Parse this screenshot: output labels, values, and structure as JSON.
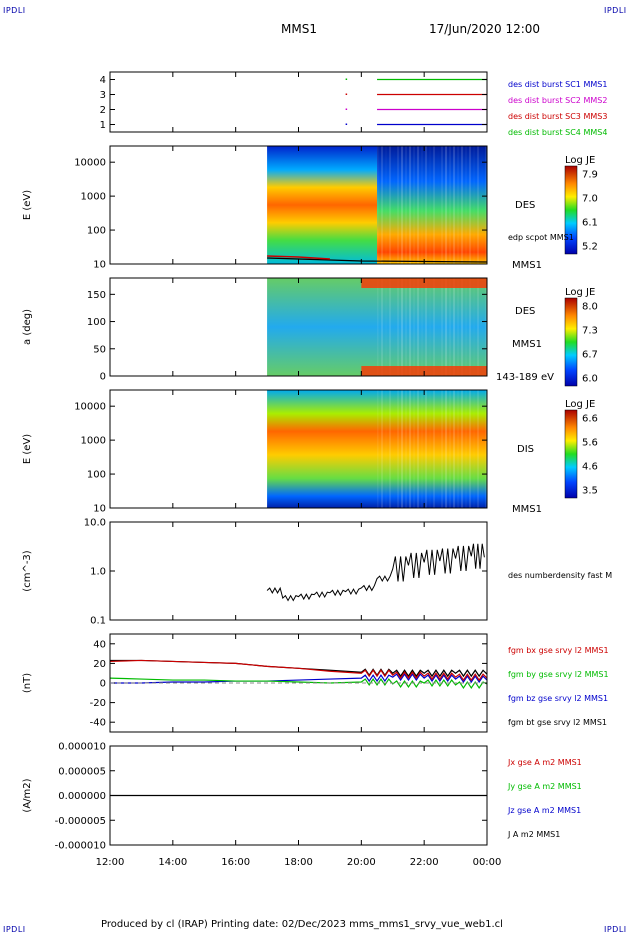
{
  "header": {
    "corner_tl": "IPDLI",
    "corner_tr": "IPDLI",
    "corner_bl": "IPDLI",
    "corner_br": "IPDLI",
    "spacecraft": "MMS1",
    "datetime": "17/Jun/2020 12:00"
  },
  "footer": {
    "text": "Produced by cl (IRAP)   Printing date: 02/Dec/2023   mms_mms1_srvy_vue_web1.cl"
  },
  "colors": {
    "red": "#cc0000",
    "green": "#00bb00",
    "blue": "#0000cc",
    "magenta": "#cc00cc",
    "black": "#000000"
  },
  "chart_data": [
    {
      "type": "line",
      "panel": "burst-availability",
      "y_ticks": [
        "4",
        "3",
        "2",
        "1"
      ],
      "ylim": [
        0.5,
        4.5
      ],
      "series": [
        {
          "name": "des dist burst SC1 MMS1",
          "color": "#0000cc",
          "y": 1,
          "x_range": [
            "20:30",
            "00:00"
          ]
        },
        {
          "name": "des dist burst SC2 MMS2",
          "color": "#cc00cc",
          "y": 2,
          "x_range": [
            "20:30",
            "00:00"
          ]
        },
        {
          "name": "des dist burst SC3 MMS3",
          "color": "#cc0000",
          "y": 3,
          "x_range": [
            "20:30",
            "00:00"
          ]
        },
        {
          "name": "des dist burst SC4 MMS4",
          "color": "#00bb00",
          "y": 4,
          "x_range": [
            "20:30",
            "00:00"
          ]
        }
      ]
    },
    {
      "type": "heatmap",
      "panel": "des-energy",
      "ylabel": "E (eV)",
      "yscale": "log",
      "ylim": [
        10,
        30000
      ],
      "y_ticks": [
        "10000",
        "1000",
        "100",
        "10"
      ],
      "label": "DES",
      "overlay": "edp scpot MMS1",
      "spacecraft": "MMS1",
      "data_start": "17:00",
      "colorbar": {
        "title": "Log JE",
        "ticks": [
          "7.9",
          "7.0",
          "6.1",
          "5.2"
        ]
      }
    },
    {
      "type": "heatmap",
      "panel": "des-pitch-angle",
      "ylabel": "a (deg)",
      "ylim": [
        0,
        180
      ],
      "y_ticks": [
        "150",
        "100",
        "50",
        "0"
      ],
      "label": "DES",
      "spacecraft": "MMS1",
      "energy_range": "143-189 eV",
      "data_start": "17:00",
      "colorbar": {
        "title": "Log JE",
        "ticks": [
          "8.0",
          "7.3",
          "6.7",
          "6.0"
        ]
      }
    },
    {
      "type": "heatmap",
      "panel": "dis-energy",
      "ylabel": "E (eV)",
      "yscale": "log",
      "ylim": [
        10,
        30000
      ],
      "y_ticks": [
        "10000",
        "1000",
        "100",
        "10"
      ],
      "label": "DIS",
      "spacecraft": "MMS1",
      "data_start": "17:00",
      "colorbar": {
        "title": "Log JE",
        "ticks": [
          "6.6",
          "5.6",
          "4.6",
          "3.5"
        ]
      }
    },
    {
      "type": "line",
      "panel": "density",
      "ylabel": "(cm^-3)",
      "yscale": "log",
      "ylim": [
        0.1,
        10
      ],
      "y_ticks": [
        "10.0",
        "1.0",
        "0.1"
      ],
      "series": [
        {
          "name": "des numberdensity fast M",
          "color": "#000000",
          "x": [
            "17:00",
            "17:30",
            "18:00",
            "18:30",
            "19:00",
            "19:30",
            "20:00",
            "20:30",
            "21:00",
            "21:30",
            "22:00",
            "22:30",
            "23:00",
            "23:30",
            "23:55"
          ],
          "y": [
            0.4,
            0.28,
            0.3,
            0.33,
            0.36,
            0.38,
            0.45,
            0.7,
            1.1,
            1.3,
            1.5,
            1.6,
            1.8,
            2.0,
            1.9
          ]
        }
      ]
    },
    {
      "type": "line",
      "panel": "magnetic-field",
      "ylabel": "(nT)",
      "ylim": [
        -50,
        50
      ],
      "y_ticks": [
        "40",
        "20",
        "0",
        "-20",
        "-40"
      ],
      "series": [
        {
          "name": "fgm bx gse srvy l2 MMS1",
          "color": "#cc0000",
          "x": [
            "12:00",
            "13:00",
            "14:00",
            "15:00",
            "16:00",
            "17:00",
            "18:00",
            "19:00",
            "20:00",
            "21:00",
            "22:00",
            "23:00",
            "00:00"
          ],
          "y": [
            22,
            23,
            22,
            21,
            20,
            17,
            15,
            12,
            10,
            8,
            7,
            6,
            5
          ]
        },
        {
          "name": "fgm by gse srvy l2 MMS1",
          "color": "#00bb00",
          "x": [
            "12:00",
            "13:00",
            "14:00",
            "15:00",
            "16:00",
            "17:00",
            "18:00",
            "19:00",
            "20:00",
            "21:00",
            "22:00",
            "23:00",
            "00:00"
          ],
          "y": [
            5,
            4,
            3,
            3,
            2,
            2,
            1,
            0,
            1,
            -1,
            0,
            -2,
            -1
          ]
        },
        {
          "name": "fgm bz gse srvy l2 MMS1",
          "color": "#0000cc",
          "x": [
            "12:00",
            "13:00",
            "14:00",
            "15:00",
            "16:00",
            "17:00",
            "18:00",
            "19:00",
            "20:00",
            "21:00",
            "22:00",
            "23:00",
            "00:00"
          ],
          "y": [
            0,
            0,
            1,
            1,
            2,
            2,
            3,
            4,
            5,
            6,
            5,
            4,
            3
          ]
        },
        {
          "name": "fgm bt gse srvy l2 MMS1",
          "color": "#000000",
          "x": [
            "12:00",
            "13:00",
            "14:00",
            "15:00",
            "16:00",
            "17:00",
            "18:00",
            "19:00",
            "20:00",
            "21:00",
            "22:00",
            "23:00",
            "00:00"
          ],
          "y": [
            23,
            23,
            22,
            21,
            20,
            17,
            15,
            13,
            11,
            10,
            10,
            10,
            9
          ]
        }
      ]
    },
    {
      "type": "line",
      "panel": "current-density",
      "ylabel": "(A/m2)",
      "ylim": [
        -1e-05,
        1e-05
      ],
      "y_ticks": [
        "0.000010",
        "0.000005",
        "0.000000",
        "-0.000005",
        "-0.000010"
      ],
      "series": [
        {
          "name": "Jx gse A m2 MMS1",
          "color": "#cc0000"
        },
        {
          "name": "Jy gse A m2 MMS1",
          "color": "#00bb00"
        },
        {
          "name": "Jz gse A m2 MMS1",
          "color": "#0000cc"
        },
        {
          "name": "J A m2 MMS1",
          "color": "#000000",
          "x": [
            "12:00",
            "00:00"
          ],
          "y": [
            0.0,
            0.0
          ]
        }
      ]
    }
  ],
  "x_axis": {
    "ticks": [
      "12:00",
      "14:00",
      "16:00",
      "18:00",
      "20:00",
      "22:00",
      "00:00"
    ]
  }
}
